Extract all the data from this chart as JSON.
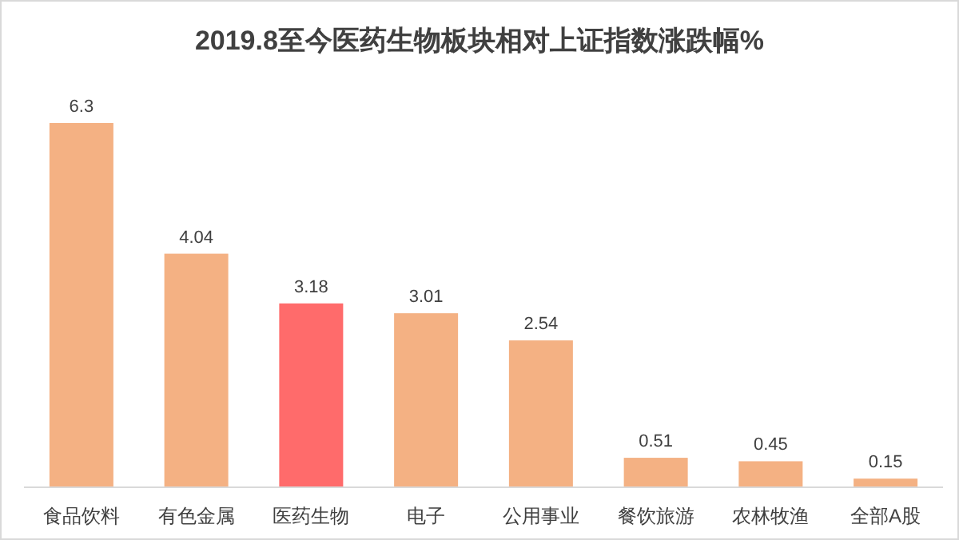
{
  "chart_data": {
    "type": "bar",
    "title": "2019.8至今医药生物板块相对上证指数涨跌幅%",
    "categories": [
      "食品饮料",
      "有色金属",
      "医药生物",
      "电子",
      "公用事业",
      "餐饮旅游",
      "农林牧渔",
      "全部A股"
    ],
    "values": [
      6.3,
      4.04,
      3.18,
      3.01,
      2.54,
      0.51,
      0.45,
      0.15
    ],
    "colors": [
      "#f4b183",
      "#f4b183",
      "#ff6b6b",
      "#f4b183",
      "#f4b183",
      "#f4b183",
      "#f4b183",
      "#f4b183"
    ],
    "data_labels": true
  }
}
